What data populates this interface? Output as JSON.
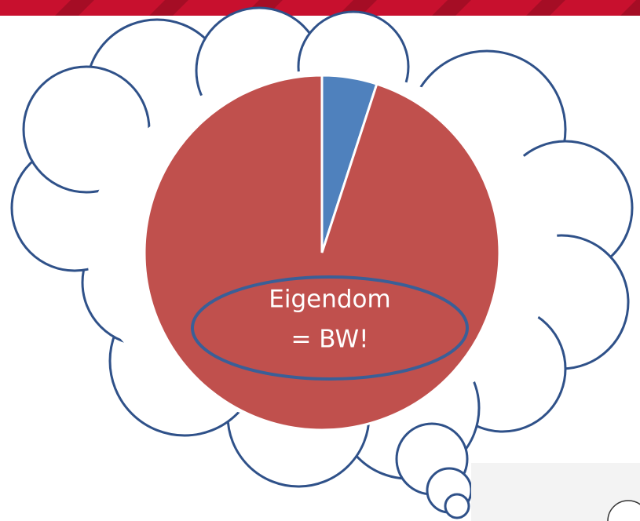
{
  "chart_data": {
    "type": "pie",
    "categories": [
      null,
      null
    ],
    "values": [
      5,
      95
    ],
    "colors": [
      "#4f81bd",
      "#c0504d"
    ],
    "annotation": [
      "Eigendom",
      "= BW!"
    ]
  }
}
